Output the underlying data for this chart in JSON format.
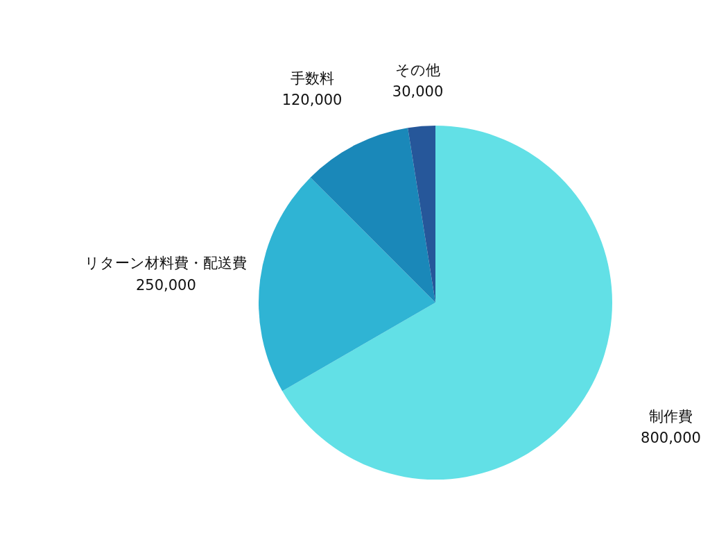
{
  "chart_data": {
    "type": "pie",
    "categories": [
      "制作費",
      "リターン材料費・配送費",
      "手数料",
      "その他"
    ],
    "values": [
      800000,
      250000,
      120000,
      30000
    ],
    "colors": [
      "#62e0e6",
      "#2fb4d4",
      "#1a88b9",
      "#26579a"
    ],
    "value_labels": [
      "800,000",
      "250,000",
      "120,000",
      "30,000"
    ]
  }
}
